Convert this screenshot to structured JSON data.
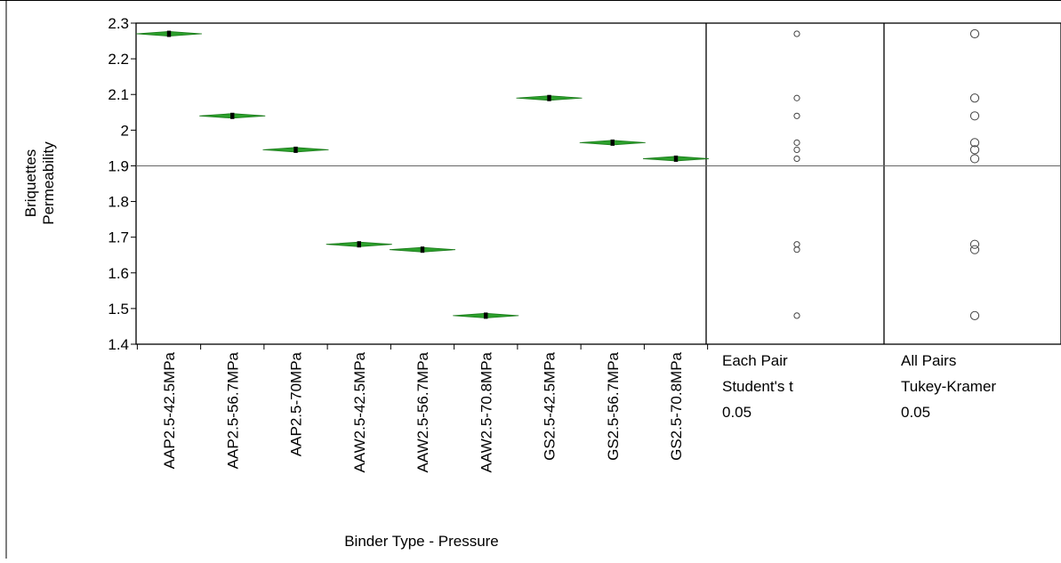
{
  "chart_data": {
    "type": "scatter",
    "title": "",
    "xlabel": "Binder Type - Pressure",
    "ylabel_lines": [
      "Briquettes",
      "Permeability"
    ],
    "ylim": [
      1.4,
      2.3
    ],
    "yticks": [
      "2.3",
      "2.2",
      "2.1",
      "2",
      "1.9",
      "1.8",
      "1.7",
      "1.6",
      "1.5",
      "1.4"
    ],
    "grand_mean": 1.9,
    "categories": [
      "AAP2.5-42.5MPa",
      "AAP2.5-56.7MPa",
      "AAP2.5-70MPa",
      "AAW2.5-42.5MPa",
      "AAW2.5-56.7MPa",
      "AAW2.5-70.8MPa",
      "GS2.5-42.5MPa",
      "GS2.5-56.7MPa",
      "GS2.5-70.8MPa"
    ],
    "values": [
      2.27,
      2.04,
      1.945,
      1.68,
      1.665,
      1.48,
      2.09,
      1.965,
      1.92
    ],
    "diamond_color": "#2ca02c",
    "point_color": "#000000",
    "comparison_panels": [
      {
        "lines": [
          "Each Pair",
          "Student's t",
          "0.05"
        ]
      },
      {
        "lines": [
          "All Pairs",
          "Tukey-Kramer",
          "0.05"
        ]
      }
    ]
  }
}
